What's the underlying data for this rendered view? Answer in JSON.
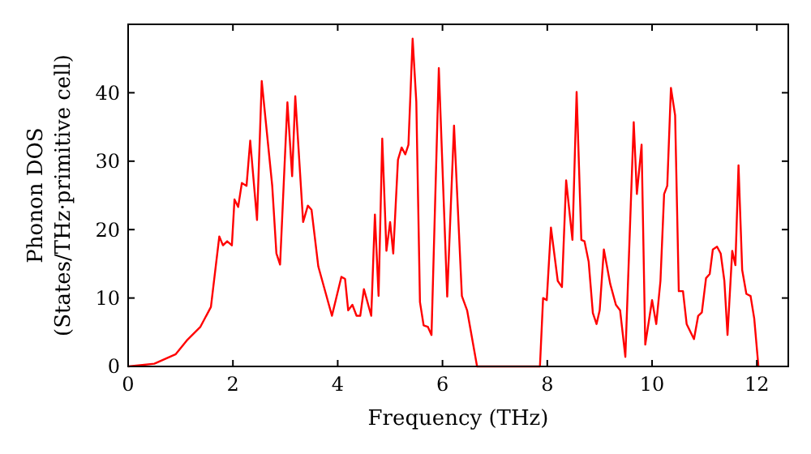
{
  "chart_data": {
    "type": "line",
    "xlabel": "Frequency (THz)",
    "ylabel": "Phonon DOS\n(States/THz·primitive cell)",
    "xlim": [
      0,
      12.6
    ],
    "xticks": [
      0,
      2,
      4,
      6,
      8,
      10,
      12
    ],
    "ylim": [
      0,
      50
    ],
    "yticks": [
      0,
      10,
      20,
      30,
      40
    ],
    "grid": false,
    "series": [
      {
        "color": "#ff0000",
        "x": [
          0,
          0.5,
          0.91,
          1.12,
          1.38,
          1.58,
          1.74,
          1.81,
          1.89,
          1.98,
          2.03,
          2.1,
          2.17,
          2.26,
          2.33,
          2.46,
          2.55,
          2.75,
          2.83,
          2.9,
          3.04,
          3.13,
          3.19,
          3.34,
          3.43,
          3.5,
          3.63,
          3.89,
          4.07,
          4.14,
          4.2,
          4.28,
          4.36,
          4.43,
          4.5,
          4.64,
          4.71,
          4.78,
          4.85,
          4.93,
          5.0,
          5.06,
          5.15,
          5.22,
          5.29,
          5.35,
          5.43,
          5.5,
          5.57,
          5.64,
          5.72,
          5.79,
          5.93,
          6.09,
          6.22,
          6.37,
          6.47,
          6.66,
          7.86,
          7.92,
          7.99,
          8.07,
          8.2,
          8.28,
          8.36,
          8.48,
          8.56,
          8.65,
          8.71,
          8.79,
          8.87,
          8.94,
          9.0,
          9.08,
          9.2,
          9.31,
          9.39,
          9.49,
          9.65,
          9.71,
          9.8,
          9.87,
          10.0,
          10.08,
          10.16,
          10.23,
          10.29,
          10.36,
          10.44,
          10.51,
          10.59,
          10.66,
          10.8,
          10.88,
          10.95,
          11.03,
          11.1,
          11.16,
          11.24,
          11.31,
          11.38,
          11.44,
          11.53,
          11.59,
          11.65,
          11.72,
          11.8,
          11.88,
          11.95,
          12.03
        ],
        "values": [
          0,
          0.4,
          1.8,
          3.8,
          5.8,
          8.7,
          19,
          17.7,
          18.3,
          17.7,
          24.4,
          23.3,
          26.8,
          26.4,
          33,
          21.4,
          41.7,
          26.4,
          16.5,
          14.9,
          38.6,
          27.8,
          39.5,
          21.1,
          23.5,
          22.9,
          14.6,
          7.4,
          13.1,
          12.8,
          8.2,
          9,
          7.4,
          7.4,
          11.3,
          7.4,
          22.2,
          10.3,
          33.3,
          16.9,
          21.1,
          16.5,
          30.2,
          32,
          31,
          32.4,
          47.9,
          38.7,
          9.4,
          6,
          5.8,
          4.6,
          43.6,
          10.2,
          35.2,
          10.3,
          8.2,
          0,
          0,
          10,
          9.7,
          20.3,
          12.5,
          11.6,
          27.2,
          18.5,
          40.1,
          18.5,
          18.3,
          15.3,
          7.8,
          6.2,
          8.2,
          17.1,
          12.1,
          9,
          8.2,
          1.4,
          35.7,
          25.2,
          32.4,
          3.2,
          9.7,
          6.2,
          12.5,
          25.2,
          26.4,
          40.7,
          36.7,
          11,
          11,
          6.2,
          4,
          7.4,
          7.9,
          12.9,
          13.5,
          17.1,
          17.5,
          16.5,
          12.5,
          4.6,
          16.9,
          14.8,
          29.4,
          14.1,
          10.6,
          10.3,
          7,
          0
        ]
      }
    ]
  }
}
